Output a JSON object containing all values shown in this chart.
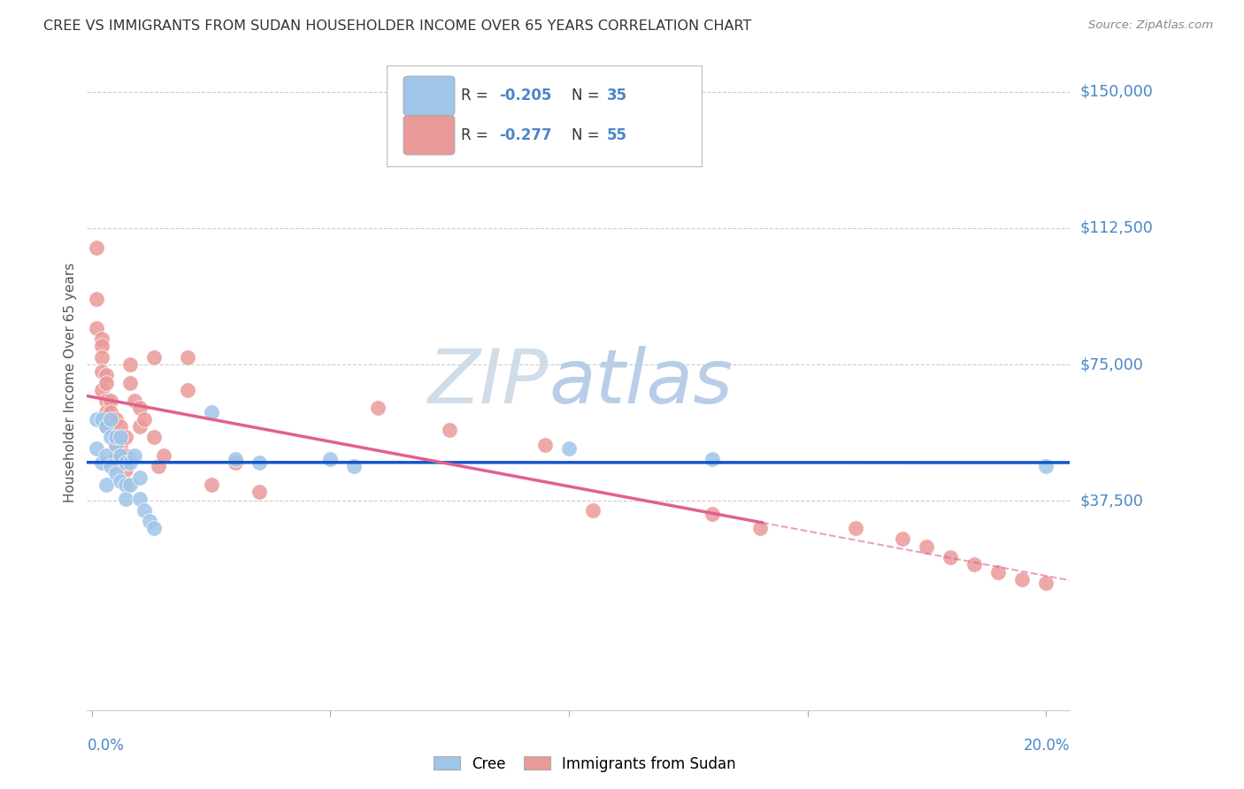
{
  "title": "CREE VS IMMIGRANTS FROM SUDAN HOUSEHOLDER INCOME OVER 65 YEARS CORRELATION CHART",
  "source": "Source: ZipAtlas.com",
  "ylabel": "Householder Income Over 65 years",
  "ytick_values": [
    150000,
    112500,
    75000,
    37500
  ],
  "ytick_labels": [
    "$150,000",
    "$112,500",
    "$75,000",
    "$37,500"
  ],
  "ymax": 160000,
  "ymin": -20000,
  "xmin": -0.001,
  "xmax": 0.205,
  "x_left_label": "0.0%",
  "x_right_label": "20.0%",
  "legend_cree_text": "R = -0.205   N = 35",
  "legend_sudan_text": "R = -0.277   N = 55",
  "cree_color": "#9fc5e8",
  "sudan_color": "#ea9999",
  "trend_cree_color": "#1155cc",
  "trend_sudan_color": "#e06090",
  "background_color": "#ffffff",
  "grid_color": "#cccccc",
  "watermark_zip_color": "#c8d8e8",
  "watermark_atlas_color": "#b8cfe8",
  "cree_points_x": [
    0.001,
    0.001,
    0.002,
    0.002,
    0.003,
    0.003,
    0.003,
    0.004,
    0.004,
    0.004,
    0.005,
    0.005,
    0.005,
    0.006,
    0.006,
    0.006,
    0.007,
    0.007,
    0.007,
    0.008,
    0.008,
    0.009,
    0.01,
    0.01,
    0.011,
    0.012,
    0.013,
    0.025,
    0.03,
    0.035,
    0.05,
    0.055,
    0.1,
    0.13,
    0.2
  ],
  "cree_points_y": [
    60000,
    52000,
    60000,
    48000,
    58000,
    50000,
    42000,
    55000,
    47000,
    60000,
    53000,
    45000,
    55000,
    50000,
    43000,
    55000,
    48000,
    42000,
    38000,
    48000,
    42000,
    50000,
    44000,
    38000,
    35000,
    32000,
    30000,
    62000,
    49000,
    48000,
    49000,
    47000,
    52000,
    49000,
    47000
  ],
  "sudan_points_x": [
    0.001,
    0.001,
    0.001,
    0.002,
    0.002,
    0.002,
    0.002,
    0.002,
    0.003,
    0.003,
    0.003,
    0.003,
    0.003,
    0.004,
    0.004,
    0.004,
    0.005,
    0.005,
    0.005,
    0.005,
    0.006,
    0.006,
    0.006,
    0.007,
    0.007,
    0.007,
    0.008,
    0.008,
    0.009,
    0.01,
    0.01,
    0.011,
    0.013,
    0.013,
    0.014,
    0.015,
    0.02,
    0.02,
    0.025,
    0.03,
    0.035,
    0.06,
    0.075,
    0.095,
    0.105,
    0.13,
    0.14,
    0.16,
    0.17,
    0.175,
    0.18,
    0.185,
    0.19,
    0.195,
    0.2
  ],
  "sudan_points_y": [
    107000,
    93000,
    85000,
    82000,
    80000,
    77000,
    73000,
    68000,
    72000,
    70000,
    65000,
    62000,
    58000,
    65000,
    62000,
    58000,
    60000,
    55000,
    52000,
    49000,
    58000,
    53000,
    50000,
    55000,
    50000,
    46000,
    75000,
    70000,
    65000,
    63000,
    58000,
    60000,
    77000,
    55000,
    47000,
    50000,
    77000,
    68000,
    42000,
    48000,
    40000,
    63000,
    57000,
    53000,
    35000,
    34000,
    30000,
    30000,
    27000,
    25000,
    22000,
    20000,
    18000,
    16000,
    15000
  ]
}
